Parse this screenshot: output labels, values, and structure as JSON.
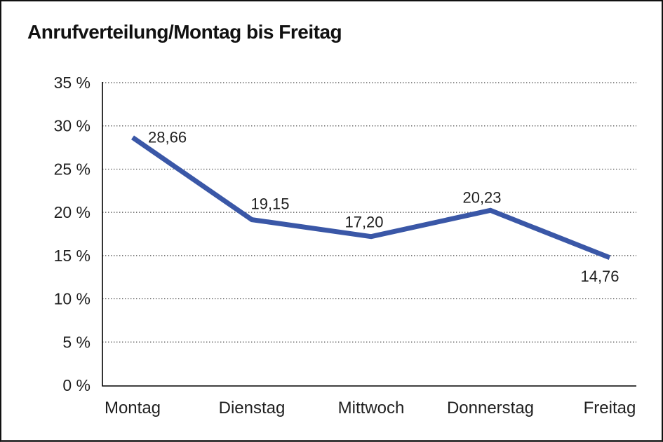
{
  "chart_data": {
    "type": "line",
    "title": "Anrufverteilung/Montag bis Freitag",
    "categories": [
      "Montag",
      "Dienstag",
      "Mittwoch",
      "Donnerstag",
      "Freitag"
    ],
    "series": [
      {
        "name": "Anrufverteilung",
        "values": [
          28.66,
          19.15,
          17.2,
          20.23,
          14.76
        ],
        "labels": [
          "28,66",
          "19,15",
          "17,20",
          "20,23",
          "14,76"
        ]
      }
    ],
    "ylabel": "",
    "xlabel": "",
    "ylim": [
      0,
      35
    ],
    "ytick_step": 5,
    "yticks": [
      "0 %",
      "5 %",
      "10 %",
      "15 %",
      "20 %",
      "25 %",
      "30 %",
      "35 %"
    ],
    "grid": "horizontal-dotted",
    "legend_position": "none",
    "line_color": "#3A57A7",
    "axis_color": "#000000",
    "grid_color": "#444444",
    "text_color": "#1f1f1f"
  }
}
